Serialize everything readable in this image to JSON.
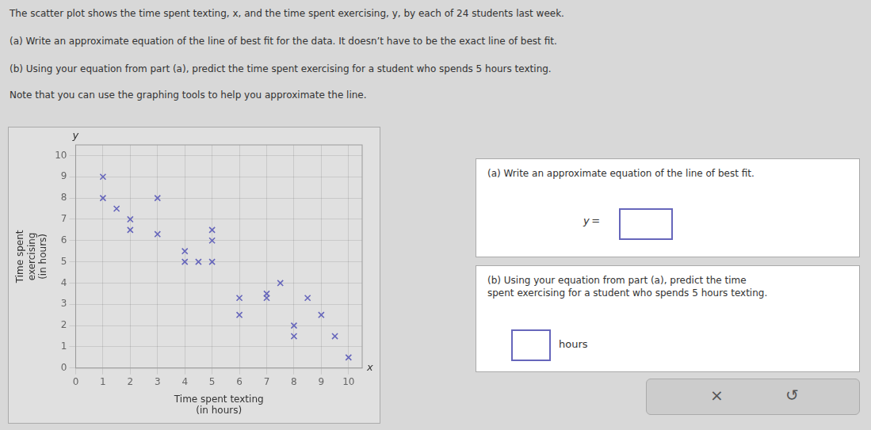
{
  "chart_data": {
    "type": "scatter",
    "title": "The scatter plot shows the time spent texting, x, and the time spent exercising, y, by each of 24 students last week.",
    "x_label": "Time spent texting\n(in hours)",
    "y_label": "Time spent\nexercising\n(in hours)",
    "x": [
      1,
      1,
      1.5,
      2,
      2,
      3,
      3,
      4,
      4,
      4.5,
      5,
      5,
      5,
      6,
      6,
      7,
      7,
      7.5,
      8,
      8,
      8.5,
      9,
      9.5,
      10
    ],
    "values": [
      9,
      8,
      7.5,
      6.5,
      7,
      8,
      6.3,
      5.5,
      5,
      5,
      6.5,
      6,
      5,
      3.3,
      2.5,
      3.5,
      3.3,
      4,
      2,
      1.5,
      3.3,
      2.5,
      1.5,
      0.5
    ],
    "color": "#6666bb",
    "marker": "x",
    "xlim": [
      0,
      10.5
    ],
    "ylim": [
      0,
      10.5
    ],
    "xticks": [
      0,
      1,
      2,
      3,
      4,
      5,
      6,
      7,
      8,
      9,
      10
    ],
    "yticks": [
      0,
      1,
      2,
      3,
      4,
      5,
      6,
      7,
      8,
      9,
      10
    ],
    "grid": true,
    "annotations": [
      "(a) Write an approximate equation of the line of best fit for the data. It doesn’t have to be the exact line of best fit.",
      "(b) Using your equation from part (a), predict the time spent exercising for a student who spends 5 hours texting.",
      "Note that you can use the graphing tools to help you approximate the line.",
      "(a) Write an approximate equation of the line of best fit.",
      "y =",
      "(b) Using your equation from part (a), predict the time\nspent exercising for a student who spends 5 hours texting.",
      "hours",
      "×",
      "↺",
      "y",
      "x"
    ]
  }
}
